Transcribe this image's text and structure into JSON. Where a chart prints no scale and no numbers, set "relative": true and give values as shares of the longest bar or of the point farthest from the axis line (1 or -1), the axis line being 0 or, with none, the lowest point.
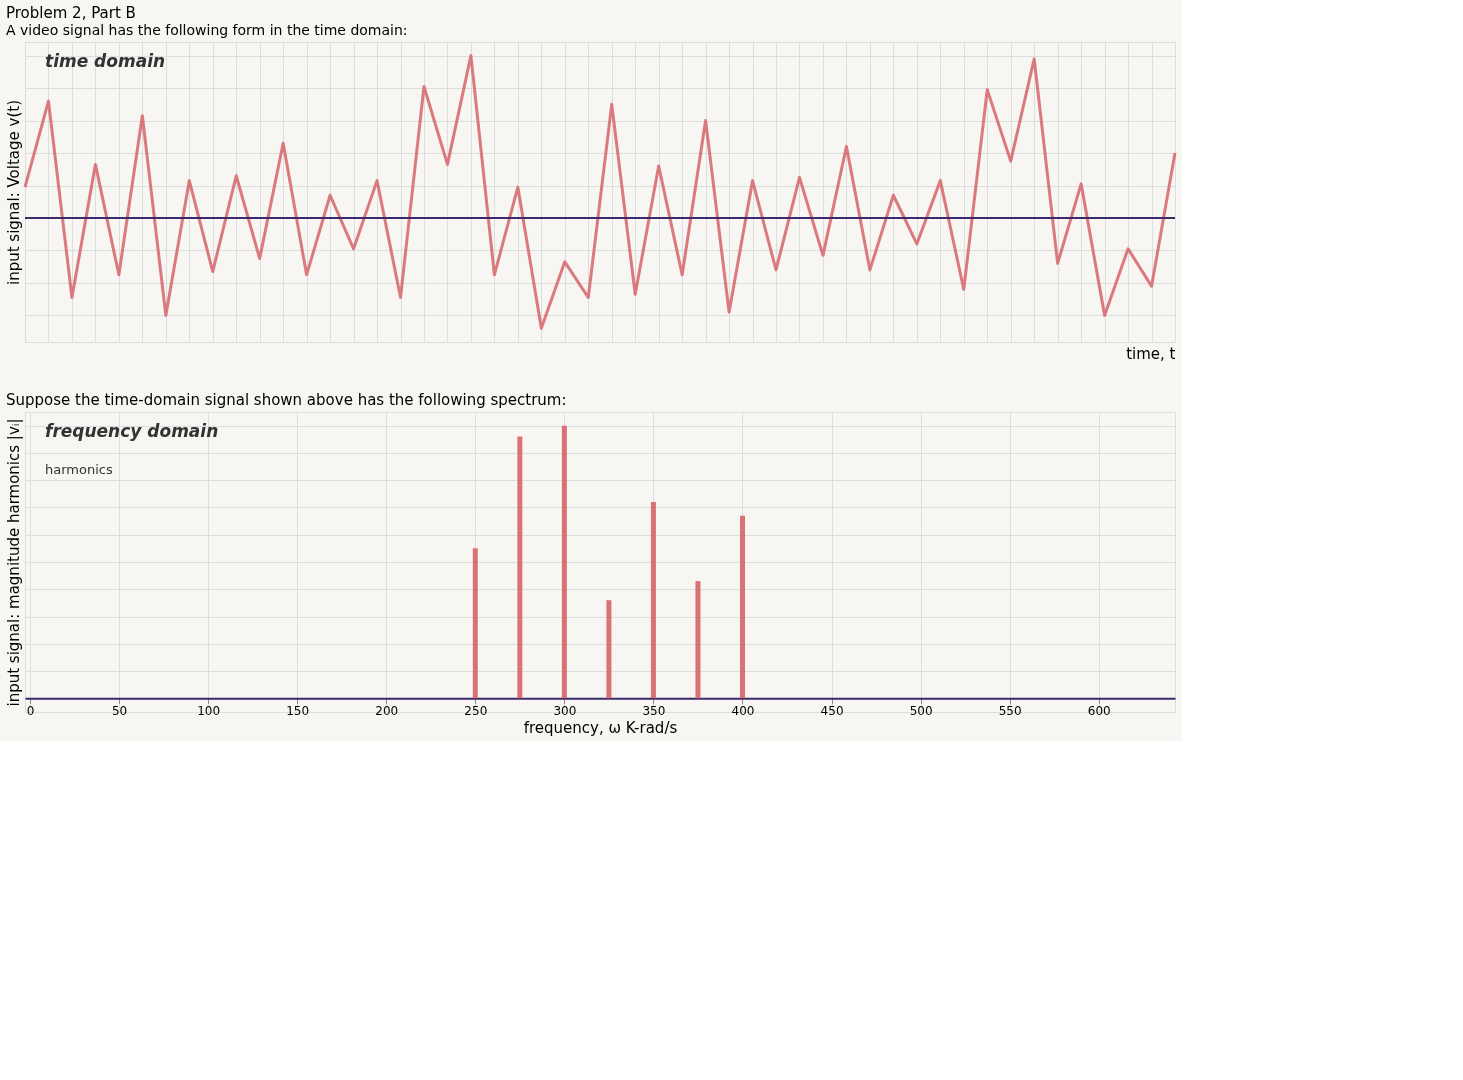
{
  "chart_data": [
    {
      "type": "line",
      "title": "Problem 2, Part B",
      "subtitle": "A video signal has the following form in the time domain:",
      "xlabel": "time, t",
      "ylabel": "input signal: Voltage v(t)",
      "annotations": [
        "time domain"
      ],
      "relative": true,
      "categories": [
        null,
        null,
        null,
        null,
        null,
        null,
        null,
        null,
        null,
        null,
        null,
        null,
        null,
        null,
        null,
        null,
        null,
        null,
        null,
        null,
        null,
        null,
        null,
        null,
        null,
        null,
        null,
        null,
        null,
        null,
        null,
        null,
        null,
        null,
        null,
        null,
        null,
        null,
        null,
        null,
        null,
        null,
        null,
        null,
        null,
        null,
        null,
        null,
        null,
        null
      ],
      "tick_labels": false,
      "grid": true,
      "ref_lines": [
        {
          "axis": "y",
          "value": 0,
          "color": "#3b2a6b"
        }
      ],
      "marker": "none",
      "line_style": "solid",
      "series": [
        {
          "color": "#d6646a",
          "values": [
            0.19,
            0.72,
            -0.49,
            0.33,
            -0.35,
            0.63,
            -0.6,
            0.23,
            -0.33,
            0.26,
            -0.25,
            0.46,
            -0.35,
            0.14,
            -0.19,
            0.23,
            -0.49,
            0.81,
            0.33,
            1,
            -0.35,
            0.19,
            -0.68,
            -0.27,
            -0.49,
            0.7,
            -0.47,
            0.32,
            -0.35,
            0.6,
            -0.58,
            0.23,
            -0.32,
            0.25,
            -0.23,
            0.44,
            -0.32,
            0.14,
            -0.16,
            0.23,
            -0.44,
            0.79,
            0.35,
            0.98,
            -0.28,
            0.21,
            -0.6,
            -0.19,
            -0.42,
            0.4
          ]
        }
      ]
    },
    {
      "type": "bar",
      "title": "Suppose the time-domain signal shown above has the following spectrum:",
      "xlabel": "frequency, ω K-rad/s",
      "ylabel": "input signal: magnitude harmonics |vᵢ|",
      "annotations": [
        "frequency domain",
        "harmonics"
      ],
      "relative": true,
      "xlim": [
        0,
        640
      ],
      "xticks": [
        0,
        50,
        100,
        150,
        200,
        250,
        300,
        350,
        400,
        450,
        500,
        550,
        600
      ],
      "tick_labels": "x",
      "grid": true,
      "series": [
        {
          "color": "#d6646a",
          "x": [
            250,
            275,
            300,
            325,
            350,
            375,
            400
          ],
          "values": [
            0.55,
            0.96,
            1,
            0.36,
            0.72,
            0.43,
            0.67
          ]
        }
      ]
    }
  ]
}
